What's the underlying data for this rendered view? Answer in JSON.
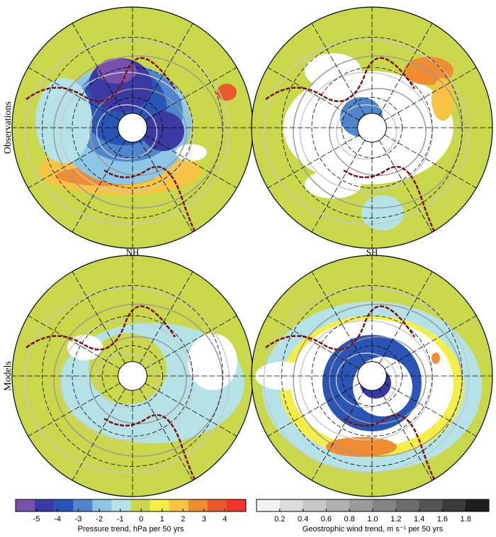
{
  "row_labels": [
    "Observations",
    "Models"
  ],
  "column_labels": [
    "NH",
    "SH"
  ],
  "colorbars": [
    {
      "label": "Pressure trend, hPa per 50 yrs",
      "xlim": [
        -6,
        5
      ],
      "ticks": [
        -5,
        -4,
        -3,
        -2,
        -1,
        0,
        1,
        2,
        3,
        4
      ],
      "colors": [
        "#7a50ad",
        "#3b3aa3",
        "#2a55b4",
        "#4f86cc",
        "#8ec6e6",
        "#b4e2e6",
        "#c9d84a",
        "#f3ee48",
        "#f7c342",
        "#f08c32",
        "#ea5a2c",
        "#f2352a"
      ]
    },
    {
      "label": "Geostrophic wind trend, m s⁻¹ per 50 yrs",
      "xlim": [
        0,
        2
      ],
      "ticks": [
        0.2,
        0.4,
        0.6,
        0.8,
        {
          "value": 1,
          "label": "1.0"
        },
        1.2,
        1.4,
        1.6,
        1.8
      ],
      "colors": [
        "#f2f2f2",
        "#dcdcdc",
        "#c6c6c6",
        "#b0b0b0",
        "#9a9a9a",
        "#848484",
        "#6c6c6c",
        "#545454",
        "#3a3a3a",
        "#1e1e1e"
      ]
    }
  ]
}
